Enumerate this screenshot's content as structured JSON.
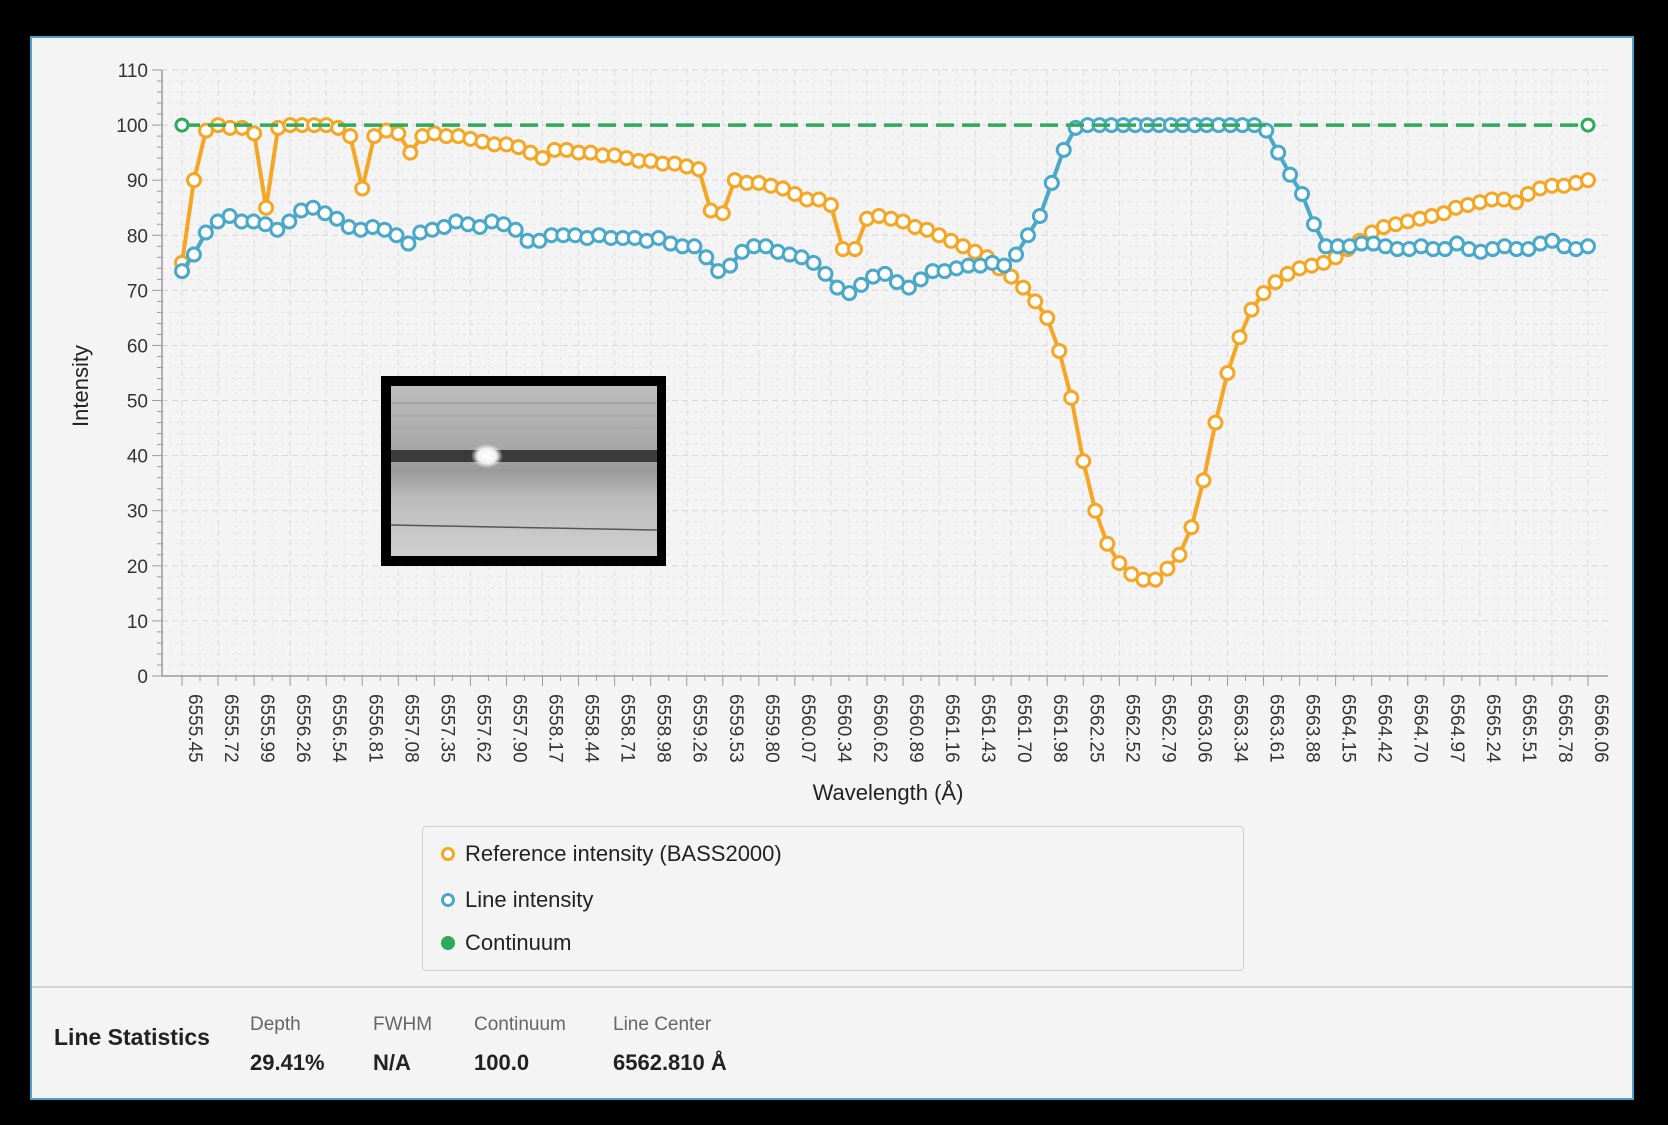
{
  "chart_data": {
    "type": "line",
    "ylabel": "Intensity",
    "xlabel": "Wavelength (Å)",
    "ylim": [
      0,
      110
    ],
    "yticks": [
      0,
      10,
      20,
      30,
      40,
      50,
      60,
      70,
      80,
      90,
      100,
      110
    ],
    "xlim": [
      6555.45,
      6566.06
    ],
    "xticks": [
      "6555.45",
      "6555.72",
      "6555.99",
      "6556.26",
      "6556.54",
      "6556.81",
      "6557.08",
      "6557.35",
      "6557.62",
      "6557.90",
      "6558.17",
      "6558.44",
      "6558.71",
      "6558.98",
      "6559.26",
      "6559.53",
      "6559.80",
      "6560.07",
      "6560.34",
      "6560.62",
      "6560.89",
      "6561.16",
      "6561.43",
      "6561.70",
      "6561.98",
      "6562.25",
      "6562.52",
      "6562.79",
      "6563.06",
      "6563.34",
      "6563.61",
      "6563.88",
      "6564.15",
      "6564.42",
      "6564.70",
      "6564.97",
      "6565.24",
      "6565.51",
      "6565.78",
      "6566.06"
    ],
    "grid": true,
    "legend_position": "bottom",
    "series": [
      {
        "name": "Reference intensity (BASS2000)",
        "color": "#f5a623",
        "marker": "hollow-circle",
        "values": [
          75,
          90,
          99,
          100,
          99.5,
          99.5,
          98.5,
          85,
          99.5,
          100,
          100,
          100,
          100,
          99.5,
          98,
          88.5,
          98,
          99,
          98.5,
          95,
          98,
          98.5,
          98,
          98,
          97.5,
          97,
          96.5,
          96.5,
          96,
          95,
          94,
          95.5,
          95.5,
          95,
          95,
          94.5,
          94.5,
          94,
          93.5,
          93.5,
          93,
          93,
          92.5,
          92,
          84.5,
          84,
          90,
          89.5,
          89.5,
          89,
          88.5,
          87.5,
          86.5,
          86.5,
          85.5,
          77.5,
          77.5,
          83,
          83.5,
          83,
          82.5,
          81.5,
          81,
          80,
          79,
          78,
          77,
          76,
          74,
          72.5,
          70.5,
          68,
          65,
          59,
          50.5,
          39,
          30,
          24,
          20.5,
          18.5,
          17.5,
          17.5,
          19.5,
          22,
          27,
          35.5,
          46,
          55,
          61.5,
          66.5,
          69.5,
          71.5,
          73,
          74,
          74.5,
          75,
          76,
          77.5,
          79,
          80.5,
          81.5,
          82,
          82.5,
          83,
          83.5,
          84,
          85,
          85.5,
          86,
          86.5,
          86.5,
          86,
          87.5,
          88.5,
          89,
          89,
          89.5,
          90
        ]
      },
      {
        "name": "Line intensity",
        "color": "#4aa8c9",
        "marker": "hollow-circle",
        "values": [
          73.5,
          76.5,
          80.5,
          82.5,
          83.5,
          82.5,
          82.5,
          82,
          81,
          82.5,
          84.5,
          85,
          84,
          83,
          81.5,
          81,
          81.5,
          81,
          80,
          78.5,
          80.5,
          81,
          81.5,
          82.5,
          82,
          81.5,
          82.5,
          82,
          81,
          79,
          79,
          80,
          80,
          80,
          79.5,
          80,
          79.5,
          79.5,
          79.5,
          79,
          79.5,
          78.5,
          78,
          78,
          76,
          73.5,
          74.5,
          77,
          78,
          78,
          77,
          76.5,
          76,
          75,
          73,
          70.5,
          69.5,
          71,
          72.5,
          73,
          71.5,
          70.5,
          72,
          73.5,
          73.5,
          74,
          74.5,
          74.5,
          75,
          74.5,
          76.5,
          80,
          83.5,
          89.5,
          95.5,
          99.5,
          100,
          100,
          100,
          100,
          100,
          100,
          100,
          100,
          100,
          100,
          100,
          100,
          100,
          100,
          100,
          99,
          95,
          91,
          87.5,
          82,
          78,
          78,
          78,
          78.5,
          78.5,
          78,
          77.5,
          77.5,
          78,
          77.5,
          77.5,
          78.5,
          77.5,
          77,
          77.5,
          78,
          77.5,
          77.5,
          78.5,
          79,
          78,
          77.5,
          78
        ]
      },
      {
        "name": "Continuum",
        "color": "#2eaa5c",
        "marker": "filled-circle",
        "values": [
          100,
          100
        ]
      }
    ]
  },
  "legend": {
    "items": [
      {
        "label": "Reference intensity (BASS2000)",
        "color": "#f5a623"
      },
      {
        "label": "Line intensity",
        "color": "#4aa8c9"
      },
      {
        "label": "Continuum",
        "color": "#2eaa5c"
      }
    ]
  },
  "stats": {
    "title": "Line Statistics",
    "depth_label": "Depth",
    "depth_value": "29.41%",
    "fwhm_label": "FWHM",
    "fwhm_value": "N/A",
    "continuum_label": "Continuum",
    "continuum_value": "100.0",
    "center_label": "Line Center",
    "center_value": "6562.810 Å"
  }
}
